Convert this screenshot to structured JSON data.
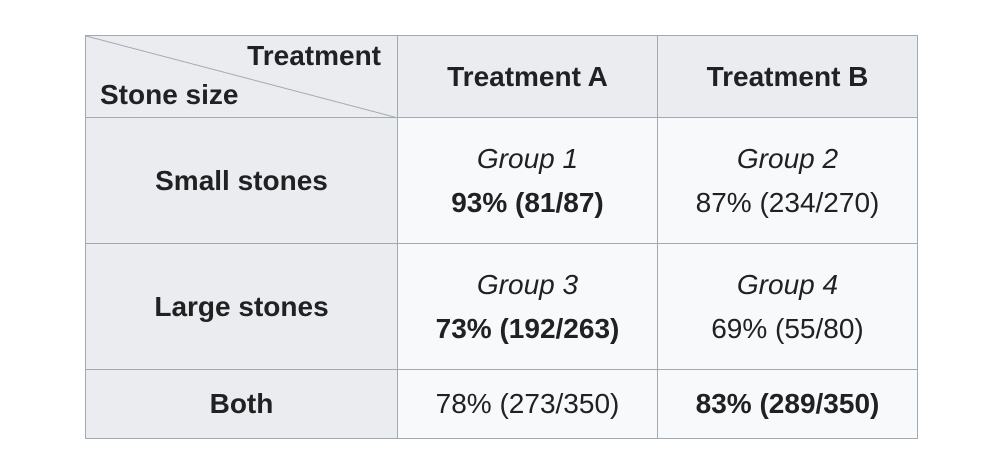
{
  "table": {
    "corner": {
      "top": "Treatment",
      "bottom": "Stone size"
    },
    "columns": [
      "Treatment A",
      "Treatment B"
    ],
    "rows": [
      {
        "label": "Small stones",
        "cells": [
          {
            "group": "Group 1",
            "result": "93% (81/87)",
            "bold": true
          },
          {
            "group": "Group 2",
            "result": "87% (234/270)",
            "bold": false
          }
        ]
      },
      {
        "label": "Large stones",
        "cells": [
          {
            "group": "Group 3",
            "result": "73% (192/263)",
            "bold": true
          },
          {
            "group": "Group 4",
            "result": "69% (55/80)",
            "bold": false
          }
        ]
      },
      {
        "label": "Both",
        "cells": [
          {
            "result": "78% (273/350)",
            "bold": false
          },
          {
            "result": "83% (289/350)",
            "bold": true
          }
        ]
      }
    ]
  }
}
